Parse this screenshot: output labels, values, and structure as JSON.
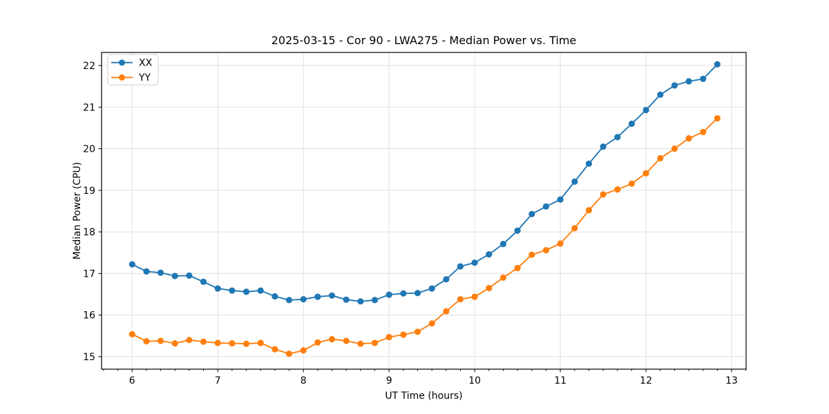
{
  "chart_data": {
    "type": "line",
    "title": "2025-03-15 - Cor 90 - LWA275 - Median Power vs. Time",
    "xlabel": "UT Time (hours)",
    "ylabel": "Median Power (CPU)",
    "xlim": [
      5.643,
      13.169
    ],
    "ylim": [
      14.7,
      22.315
    ],
    "x_major_ticks": [
      6,
      7,
      8,
      9,
      10,
      11,
      12,
      13
    ],
    "x_minor_divisions": 6,
    "y_major_ticks": [
      15,
      16,
      17,
      18,
      19,
      20,
      21,
      22
    ],
    "grid": true,
    "legend_position": "upper left",
    "x": [
      6.0,
      6.167,
      6.333,
      6.5,
      6.667,
      6.833,
      7.0,
      7.167,
      7.333,
      7.5,
      7.667,
      7.833,
      8.0,
      8.167,
      8.333,
      8.5,
      8.667,
      8.833,
      9.0,
      9.167,
      9.333,
      9.5,
      9.667,
      9.833,
      10.0,
      10.167,
      10.333,
      10.5,
      10.667,
      10.833,
      11.0,
      11.167,
      11.333,
      11.5,
      11.667,
      11.833,
      12.0,
      12.167,
      12.333,
      12.5,
      12.667,
      12.833
    ],
    "series": [
      {
        "name": "XX",
        "color": "#1f77b4",
        "values": [
          17.22,
          17.05,
          17.02,
          16.94,
          16.95,
          16.8,
          16.64,
          16.59,
          16.56,
          16.59,
          16.45,
          16.36,
          16.38,
          16.44,
          16.47,
          16.37,
          16.33,
          16.36,
          16.49,
          16.52,
          16.53,
          16.64,
          16.86,
          17.17,
          17.26,
          17.46,
          17.71,
          18.03,
          18.43,
          18.61,
          18.78,
          19.21,
          19.64,
          20.05,
          20.28,
          20.6,
          20.93,
          21.3,
          21.52,
          21.62,
          21.68,
          22.03
        ]
      },
      {
        "name": "YY",
        "color": "#ff7f0e",
        "values": [
          15.54,
          15.37,
          15.38,
          15.32,
          15.4,
          15.36,
          15.33,
          15.32,
          15.31,
          15.33,
          15.18,
          15.07,
          15.15,
          15.34,
          15.42,
          15.38,
          15.31,
          15.33,
          15.47,
          15.53,
          15.6,
          15.8,
          16.09,
          16.38,
          16.44,
          16.65,
          16.9,
          17.13,
          17.45,
          17.56,
          17.72,
          18.09,
          18.52,
          18.9,
          19.02,
          19.16,
          19.41,
          19.77,
          20.0,
          20.25,
          20.4,
          20.73
        ]
      }
    ]
  }
}
